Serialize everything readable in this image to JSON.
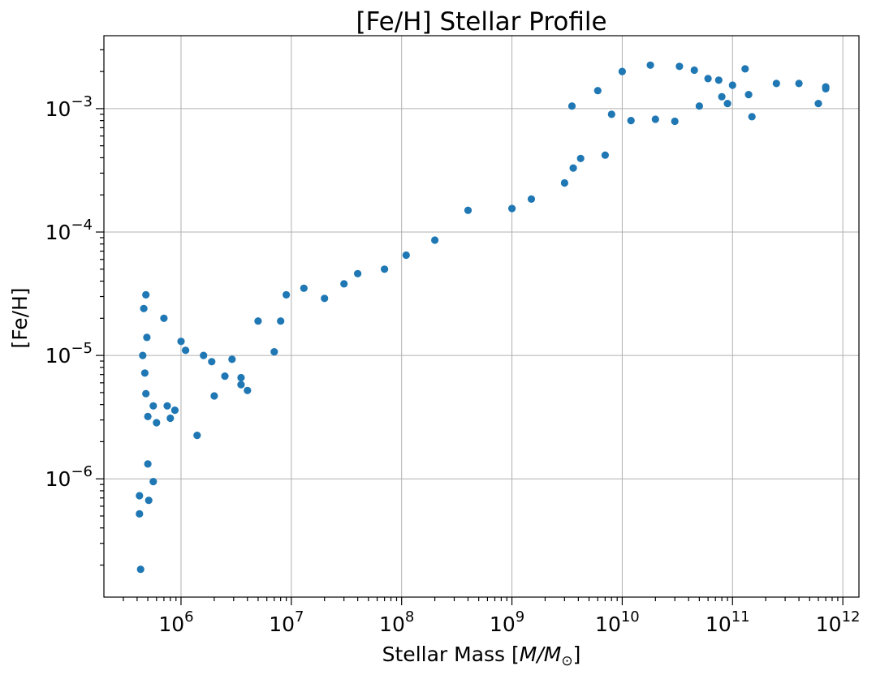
{
  "chart_data": {
    "type": "scatter",
    "title": "[Fe/H] Stellar Profile",
    "xlabel": "Stellar Mass",
    "xlabel_unit": "M/M",
    "xlabel_unit_sub": "⊙",
    "ylabel": "[Fe/H]",
    "xscale": "log",
    "yscale": "log",
    "xlim": [
      200000,
      1400000000000
    ],
    "ylim": [
      1.1e-07,
      0.0039
    ],
    "x_ticks": [
      1000000.0,
      10000000.0,
      100000000.0,
      1000000000.0,
      10000000000.0,
      100000000000.0,
      1000000000000.0
    ],
    "x_tick_labels": [
      {
        "base": "10",
        "exp": "6"
      },
      {
        "base": "10",
        "exp": "7"
      },
      {
        "base": "10",
        "exp": "8"
      },
      {
        "base": "10",
        "exp": "9"
      },
      {
        "base": "10",
        "exp": "10"
      },
      {
        "base": "10",
        "exp": "11"
      },
      {
        "base": "10",
        "exp": "12"
      }
    ],
    "y_ticks": [
      1e-06,
      1e-05,
      0.0001,
      0.001
    ],
    "y_tick_labels": [
      {
        "base": "10",
        "exp": "−6"
      },
      {
        "base": "10",
        "exp": "−5"
      },
      {
        "base": "10",
        "exp": "−4"
      },
      {
        "base": "10",
        "exp": "−3"
      }
    ],
    "grid": true,
    "marker_color": "#1f77b4",
    "series": [
      {
        "points": [
          [
            430000,
            1.85e-07
          ],
          [
            420000,
            5.2e-07
          ],
          [
            420000,
            7.3e-07
          ],
          [
            510000,
            6.7e-07
          ],
          [
            500000,
            1.32e-06
          ],
          [
            560000,
            9.5e-07
          ],
          [
            1400000,
            2.25e-06
          ],
          [
            600000,
            2.85e-06
          ],
          [
            500000,
            3.2e-06
          ],
          [
            800000,
            3.1e-06
          ],
          [
            750000,
            3.9e-06
          ],
          [
            560000,
            3.9e-06
          ],
          [
            480000,
            4.9e-06
          ],
          [
            880000,
            3.6e-06
          ],
          [
            2000000,
            4.7e-06
          ],
          [
            4000000,
            5.2e-06
          ],
          [
            3500000,
            5.8e-06
          ],
          [
            3500000,
            6.6e-06
          ],
          [
            2500000,
            6.8e-06
          ],
          [
            1900000,
            8.9e-06
          ],
          [
            2900000,
            9.3e-06
          ],
          [
            7000000,
            1.07e-05
          ],
          [
            1600000,
            1e-05
          ],
          [
            1100000,
            1.1e-05
          ],
          [
            450000,
            1e-05
          ],
          [
            470000,
            7.2e-06
          ],
          [
            490000,
            1.4e-05
          ],
          [
            1000000,
            1.3e-05
          ],
          [
            5000000,
            1.9e-05
          ],
          [
            8000000,
            1.9e-05
          ],
          [
            460000,
            2.4e-05
          ],
          [
            480000,
            3.1e-05
          ],
          [
            700000,
            2e-05
          ],
          [
            9000000,
            3.1e-05
          ],
          [
            13000000,
            3.5e-05
          ],
          [
            20000000,
            2.9e-05
          ],
          [
            30000000,
            3.8e-05
          ],
          [
            40000000,
            4.6e-05
          ],
          [
            70000000,
            5e-05
          ],
          [
            110000000,
            6.5e-05
          ],
          [
            200000000,
            8.6e-05
          ],
          [
            400000000,
            0.00015
          ],
          [
            1000000000,
            0.000155
          ],
          [
            1500000000,
            0.000185
          ],
          [
            3000000000,
            0.00025
          ],
          [
            3600000000,
            0.00033
          ],
          [
            4200000000,
            0.000395
          ],
          [
            7000000000,
            0.00042
          ],
          [
            8000000000,
            0.0009
          ],
          [
            12000000000,
            0.0008
          ],
          [
            20000000000,
            0.00082
          ],
          [
            30000000000,
            0.00079
          ],
          [
            50000000000,
            0.00105
          ],
          [
            140000000000,
            0.0013
          ],
          [
            150000000000,
            0.00086
          ],
          [
            130000000000,
            0.0021
          ],
          [
            100000000000,
            0.00155
          ],
          [
            250000000000,
            0.0016
          ],
          [
            400000000000,
            0.0016
          ],
          [
            600000000000,
            0.0011
          ],
          [
            700000000000,
            0.00145
          ],
          [
            700000000000,
            0.0015
          ],
          [
            10000000000,
            0.002
          ],
          [
            18000000000,
            0.00225
          ],
          [
            33000000000,
            0.0022
          ],
          [
            45000000000,
            0.00205
          ],
          [
            60000000000,
            0.00175
          ],
          [
            75000000000,
            0.0017
          ],
          [
            80000000000,
            0.00125
          ],
          [
            90000000000,
            0.0011
          ],
          [
            6000000000,
            0.0014
          ],
          [
            3500000000,
            0.00105
          ]
        ]
      }
    ]
  }
}
